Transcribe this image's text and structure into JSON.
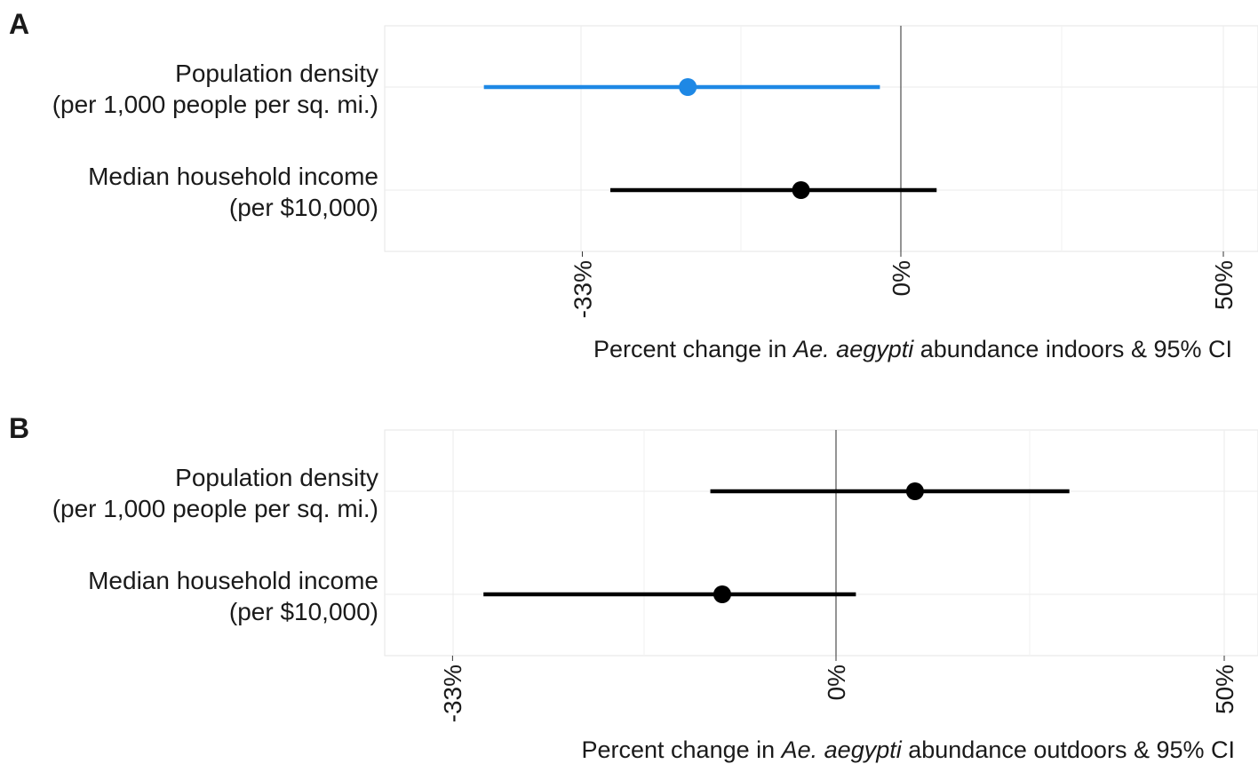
{
  "chart_data": [
    {
      "panel": "A",
      "type": "forest",
      "categories": [
        {
          "line1": "Population density",
          "line2": "(per 1,000 people per sq. mi.)"
        },
        {
          "line1": "Median household income",
          "line2": "(per $10,000)"
        }
      ],
      "estimates": [
        {
          "center": -23.5,
          "lower": -40.8,
          "upper": -2.6,
          "color": "#1E88E5"
        },
        {
          "center": -11.8,
          "lower": -30.6,
          "upper": 4.6,
          "color": "#000000"
        }
      ],
      "xticks": [
        {
          "label": "-33%",
          "value": -33
        },
        {
          "label": "0%",
          "value": 0
        },
        {
          "label": "50%",
          "value": 50
        }
      ],
      "xlabel": {
        "before": "Percent change in ",
        "italic": "Ae. aegypti",
        "after": " abundance indoors & 95% CI"
      },
      "scale": "log",
      "reference_line": 0,
      "grid": true
    },
    {
      "panel": "B",
      "type": "forest",
      "categories": [
        {
          "line1": "Population density",
          "line2": "(per 1,000 people per sq. mi.)"
        },
        {
          "line1": "Median household income",
          "line2": "(per $10,000)"
        }
      ],
      "estimates": [
        {
          "center": 8.6,
          "lower": -12.3,
          "upper": 27.6,
          "color": "#000000"
        },
        {
          "center": -11.2,
          "lower": -30.8,
          "upper": 2.1,
          "color": "#000000"
        }
      ],
      "xticks": [
        {
          "label": "-33%",
          "value": -33
        },
        {
          "label": "0%",
          "value": 0
        },
        {
          "label": "50%",
          "value": 50
        }
      ],
      "xlabel": {
        "before": "Percent change in ",
        "italic": "Ae. aegypti",
        "after": " abundance outdoors & 95% CI"
      },
      "scale": "log",
      "reference_line": 0,
      "grid": true
    }
  ]
}
